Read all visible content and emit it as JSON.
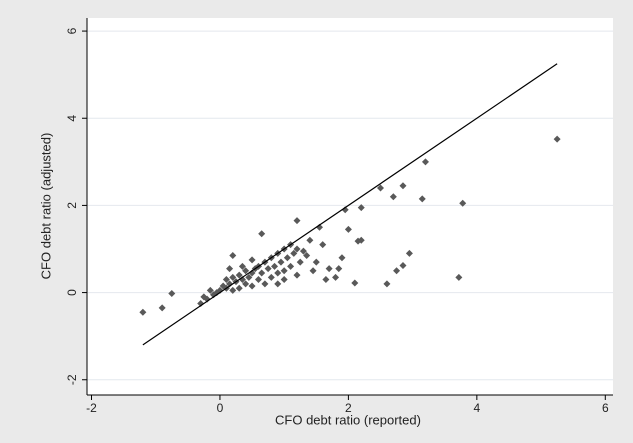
{
  "chart_data": {
    "type": "scatter",
    "x_label": "CFO debt ratio (reported)",
    "y_label": "CFO debt ratio (adjusted)",
    "xlim": [
      -2.07,
      6.12
    ],
    "ylim": [
      -2.35,
      6.3
    ],
    "xticks": [
      -2,
      0,
      2,
      4,
      6
    ],
    "yticks": [
      -2,
      0,
      2,
      4,
      6
    ],
    "grid": true,
    "series": [
      {
        "type": "scatter",
        "color": "#595959",
        "x": [
          -1.2,
          -0.9,
          -0.75,
          5.25,
          3.78,
          3.72,
          3.2,
          3.15,
          2.85,
          2.7,
          2.95,
          2.85,
          2.75,
          2.6,
          2.2,
          2.2,
          2.15,
          2.1,
          2.0,
          1.95,
          1.9,
          1.85,
          1.8,
          1.7,
          1.65,
          1.55,
          1.5,
          1.4,
          1.6,
          1.2,
          0.65,
          0.2,
          2.5,
          1.45,
          1.35,
          -0.3,
          -0.25,
          -0.2,
          -0.15,
          -0.1,
          -0.05,
          0,
          0.05,
          0.1,
          0.1,
          0.15,
          0.2,
          0.2,
          0.25,
          0.3,
          0.3,
          0.35,
          0.4,
          0.4,
          0.45,
          0.5,
          0.5,
          0.55,
          0.6,
          0.6,
          0.65,
          0.7,
          0.7,
          0.75,
          0.8,
          0.8,
          0.85,
          0.9,
          0.9,
          0.95,
          1.0,
          1.0,
          1.05,
          1.1,
          1.1,
          1.15,
          1.2,
          1.2,
          1.25,
          1.3,
          0.35,
          0.5,
          0.15,
          0.9,
          1.0
        ],
        "y": [
          -0.45,
          -0.35,
          -0.02,
          3.52,
          2.05,
          0.35,
          3.0,
          2.15,
          2.45,
          2.2,
          0.9,
          0.62,
          0.5,
          0.2,
          1.95,
          1.2,
          1.18,
          0.22,
          1.45,
          1.9,
          0.8,
          0.55,
          0.35,
          0.55,
          0.3,
          1.5,
          0.7,
          1.2,
          1.1,
          1.65,
          1.35,
          0.85,
          2.4,
          0.5,
          0.85,
          -0.25,
          -0.1,
          -0.15,
          0.05,
          -0.05,
          0.0,
          0.05,
          0.15,
          0.1,
          0.3,
          0.2,
          0.05,
          0.35,
          0.25,
          0.1,
          0.4,
          0.3,
          0.2,
          0.5,
          0.35,
          0.15,
          0.45,
          0.55,
          0.3,
          0.6,
          0.45,
          0.2,
          0.7,
          0.55,
          0.35,
          0.8,
          0.6,
          0.45,
          0.9,
          0.7,
          0.5,
          1.0,
          0.8,
          0.6,
          1.1,
          0.9,
          0.4,
          1.0,
          0.7,
          0.95,
          0.6,
          0.75,
          0.55,
          0.2,
          0.3
        ]
      },
      {
        "type": "line",
        "color": "#000000",
        "x": [
          -1.2,
          5.25
        ],
        "y": [
          -1.2,
          5.25
        ]
      }
    ]
  }
}
